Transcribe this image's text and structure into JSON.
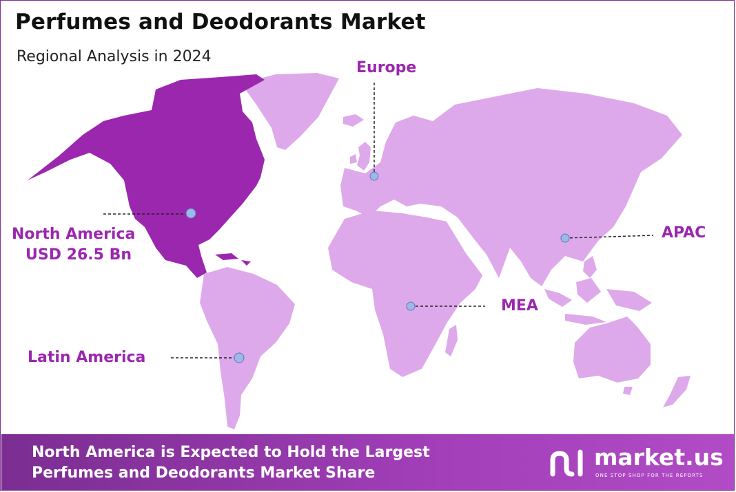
{
  "title": "Perfumes and Deodorants Market",
  "subtitle": "Regional Analysis in 2024",
  "colors": {
    "highlight": "#9b27af",
    "land": "#dea9ea",
    "footer": "#8e35a6",
    "marker": "#9fb8ea"
  },
  "regions": [
    {
      "id": "north-america",
      "name": "North America",
      "value": "USD 26.5 Bn",
      "highlighted": true
    },
    {
      "id": "europe",
      "name": "Europe"
    },
    {
      "id": "apac",
      "name": "APAC"
    },
    {
      "id": "mea",
      "name": "MEA"
    },
    {
      "id": "latin-america",
      "name": "Latin America"
    }
  ],
  "footer": {
    "line1": "North America is Expected to Hold the Largest",
    "line2": "Perfumes and Deodorants Market Share"
  },
  "brand": {
    "name": "market.us",
    "tagline": "ONE STOP SHOP FOR THE REPORTS"
  }
}
